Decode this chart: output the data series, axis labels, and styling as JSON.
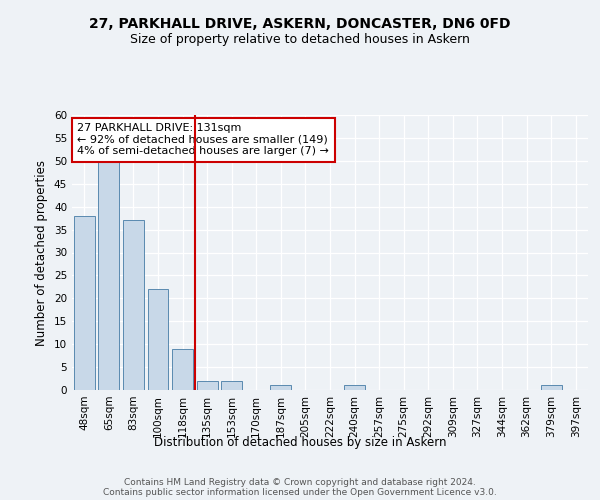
{
  "title1": "27, PARKHALL DRIVE, ASKERN, DONCASTER, DN6 0FD",
  "title2": "Size of property relative to detached houses in Askern",
  "xlabel": "Distribution of detached houses by size in Askern",
  "ylabel": "Number of detached properties",
  "categories": [
    "48sqm",
    "65sqm",
    "83sqm",
    "100sqm",
    "118sqm",
    "135sqm",
    "153sqm",
    "170sqm",
    "187sqm",
    "205sqm",
    "222sqm",
    "240sqm",
    "257sqm",
    "275sqm",
    "292sqm",
    "309sqm",
    "327sqm",
    "344sqm",
    "362sqm",
    "379sqm",
    "397sqm"
  ],
  "values": [
    38,
    50,
    37,
    22,
    9,
    2,
    2,
    0,
    1,
    0,
    0,
    1,
    0,
    0,
    0,
    0,
    0,
    0,
    0,
    1,
    0
  ],
  "bar_color": "#c8d8e8",
  "bar_edge_color": "#5a8ab0",
  "vline_color": "#cc0000",
  "annotation_text": "27 PARKHALL DRIVE: 131sqm\n← 92% of detached houses are smaller (149)\n4% of semi-detached houses are larger (7) →",
  "annotation_box_color": "#ffffff",
  "annotation_box_edge": "#cc0000",
  "ylim": [
    0,
    60
  ],
  "yticks": [
    0,
    5,
    10,
    15,
    20,
    25,
    30,
    35,
    40,
    45,
    50,
    55,
    60
  ],
  "footer_text": "Contains HM Land Registry data © Crown copyright and database right 2024.\nContains public sector information licensed under the Open Government Licence v3.0.",
  "bg_color": "#eef2f6",
  "grid_color": "#ffffff",
  "title_fontsize": 10,
  "subtitle_fontsize": 9,
  "tick_fontsize": 7.5,
  "label_fontsize": 8.5,
  "footer_fontsize": 6.5,
  "vline_index": 4.5
}
